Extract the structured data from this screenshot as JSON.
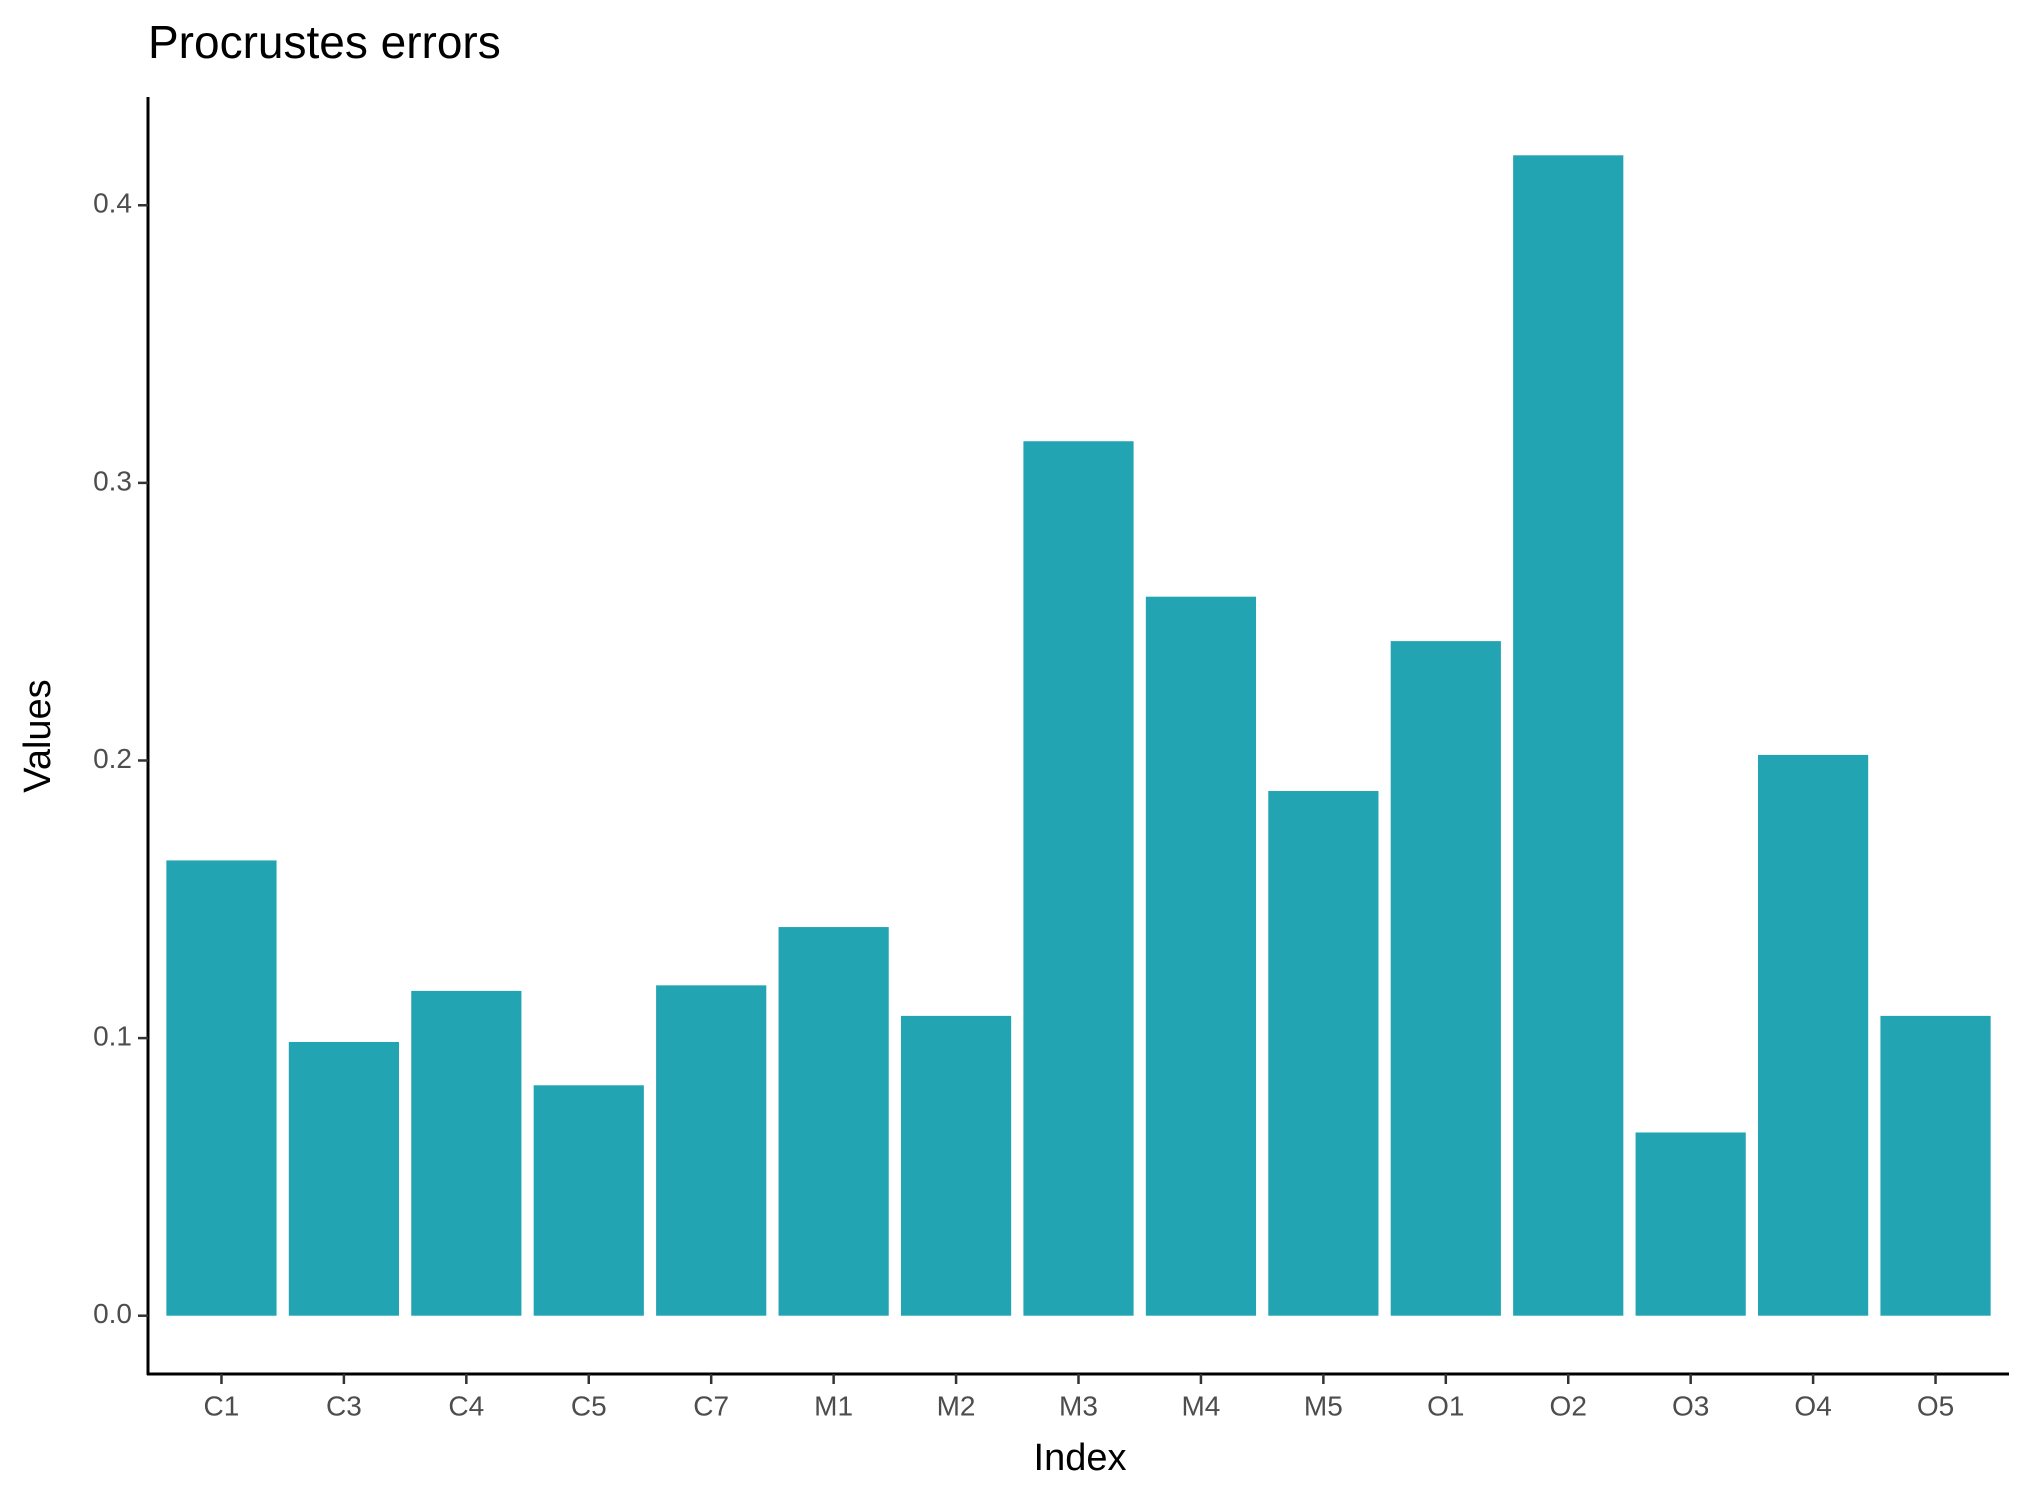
{
  "chart_data": {
    "type": "bar",
    "title": "Procrustes errors",
    "x_label": "Index",
    "y_label": "Values",
    "categories": [
      "C1",
      "C3",
      "C4",
      "C5",
      "C7",
      "M1",
      "M2",
      "M3",
      "M4",
      "M5",
      "O1",
      "O2",
      "O3",
      "O4",
      "O5"
    ],
    "values": [
      0.164,
      0.0986,
      0.117,
      0.083,
      0.119,
      0.14,
      0.108,
      0.315,
      0.259,
      0.189,
      0.243,
      0.418,
      0.066,
      0.202,
      0.108
    ],
    "color": "#22a4b2",
    "ylim": [
      -0.021,
      0.439
    ],
    "yticks": [
      {
        "value": 0,
        "label": "0.0"
      },
      0.1,
      0.2,
      0.3,
      0.4
    ]
  }
}
